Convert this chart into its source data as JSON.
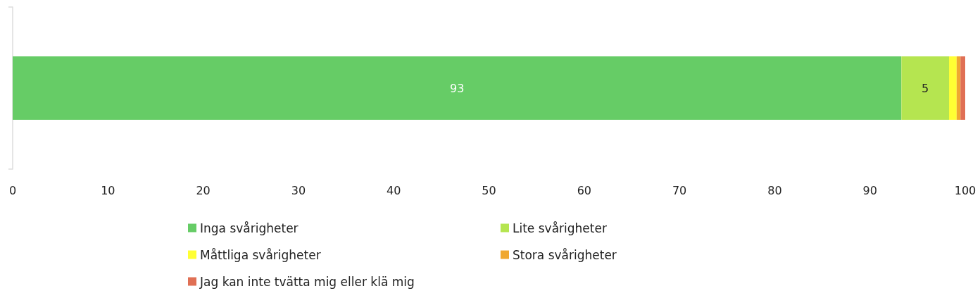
{
  "chart_data": {
    "type": "bar",
    "orientation": "horizontal",
    "stacked": true,
    "categories": [
      null
    ],
    "series": [
      {
        "name": "Inga svårigheter",
        "color": "#66cc66",
        "values": [
          93.3
        ],
        "value_labels": [
          "93"
        ]
      },
      {
        "name": "Lite svårigheter",
        "color": "#b5e550",
        "values": [
          5.0
        ],
        "value_labels": [
          "5"
        ]
      },
      {
        "name": "Måttliga svårigheter",
        "color": "#ffff33",
        "values": [
          0.8
        ],
        "value_labels": [
          null
        ]
      },
      {
        "name": "Stora svårigheter",
        "color": "#f0a830",
        "values": [
          0.4
        ],
        "value_labels": [
          null
        ]
      },
      {
        "name": "Jag kan inte tvätta mig eller klä mig",
        "color": "#e07055",
        "values": [
          0.5
        ],
        "value_labels": [
          null
        ]
      }
    ],
    "xlim": [
      0,
      100
    ],
    "xticks": [
      0,
      10,
      20,
      30,
      40,
      50,
      60,
      70,
      80,
      90,
      100
    ],
    "grid": false,
    "legend": "bottom"
  }
}
